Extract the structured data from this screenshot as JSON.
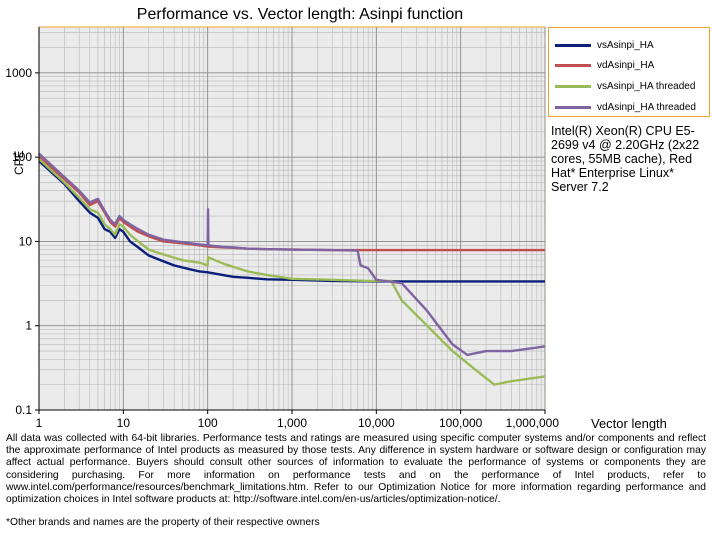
{
  "chart_data": {
    "type": "line",
    "title": "Performance vs. Vector length: Asinpi function",
    "xlabel": "Vector length",
    "ylabel": "CPE",
    "x_scale": "log",
    "y_scale": "log",
    "xlim": [
      1,
      1000000
    ],
    "ylim": [
      0.1,
      3500
    ],
    "x_ticks": [
      1,
      10,
      100,
      1000,
      10000,
      100000,
      1000000
    ],
    "x_tick_labels": [
      "1",
      "10",
      "100",
      "1,000",
      "10,000",
      "100,000",
      "1,000,000"
    ],
    "y_ticks": [
      0.1,
      1,
      10,
      100,
      1000
    ],
    "y_tick_labels": [
      "0.1",
      "1",
      "10",
      "100",
      "1000"
    ],
    "grid": true,
    "legend_position": "right",
    "series": [
      {
        "name": "vsAsinpi_HA",
        "color": "#0a1f7a",
        "points": [
          [
            1,
            90
          ],
          [
            2,
            48
          ],
          [
            3,
            30
          ],
          [
            4,
            22
          ],
          [
            5,
            19
          ],
          [
            6,
            14
          ],
          [
            7,
            13
          ],
          [
            8,
            11
          ],
          [
            9,
            14
          ],
          [
            10,
            13
          ],
          [
            12,
            10
          ],
          [
            15,
            8.5
          ],
          [
            20,
            6.8
          ],
          [
            30,
            5.8
          ],
          [
            40,
            5.2
          ],
          [
            60,
            4.7
          ],
          [
            80,
            4.4
          ],
          [
            100,
            4.3
          ],
          [
            150,
            4.0
          ],
          [
            200,
            3.8
          ],
          [
            300,
            3.7
          ],
          [
            500,
            3.55
          ],
          [
            1000,
            3.5
          ],
          [
            3000,
            3.4
          ],
          [
            10000,
            3.35
          ],
          [
            100000,
            3.35
          ],
          [
            1000000,
            3.35
          ]
        ]
      },
      {
        "name": "vdAsinpi_HA",
        "color": "#c0504d",
        "points": [
          [
            1,
            100
          ],
          [
            2,
            55
          ],
          [
            3,
            38
          ],
          [
            4,
            27
          ],
          [
            5,
            30
          ],
          [
            6,
            22
          ],
          [
            7,
            17
          ],
          [
            8,
            15
          ],
          [
            9,
            19
          ],
          [
            10,
            17
          ],
          [
            12,
            15
          ],
          [
            15,
            13
          ],
          [
            20,
            11.5
          ],
          [
            30,
            10
          ],
          [
            50,
            9.5
          ],
          [
            80,
            9
          ],
          [
            100,
            8.7
          ],
          [
            150,
            8.5
          ],
          [
            200,
            8.4
          ],
          [
            300,
            8.2
          ],
          [
            500,
            8.1
          ],
          [
            1000,
            8
          ],
          [
            3000,
            7.9
          ],
          [
            6000,
            7.9
          ],
          [
            10000,
            7.9
          ],
          [
            100000,
            7.9
          ],
          [
            1000000,
            7.9
          ]
        ]
      },
      {
        "name": "vsAsinpi_HA threaded",
        "color": "#9bbb59",
        "points": [
          [
            1,
            95
          ],
          [
            2,
            50
          ],
          [
            3,
            33
          ],
          [
            4,
            24
          ],
          [
            5,
            22
          ],
          [
            6,
            16
          ],
          [
            7,
            14
          ],
          [
            8,
            12
          ],
          [
            9,
            16
          ],
          [
            10,
            15
          ],
          [
            12,
            12
          ],
          [
            15,
            10
          ],
          [
            20,
            8
          ],
          [
            30,
            7
          ],
          [
            50,
            6
          ],
          [
            80,
            5.6
          ],
          [
            100,
            5.2
          ],
          [
            101,
            6.5
          ],
          [
            150,
            5.5
          ],
          [
            200,
            5
          ],
          [
            300,
            4.4
          ],
          [
            500,
            4
          ],
          [
            1000,
            3.6
          ],
          [
            3000,
            3.5
          ],
          [
            8000,
            3.4
          ],
          [
            15000,
            3.4
          ],
          [
            20000,
            2
          ],
          [
            40000,
            1
          ],
          [
            80000,
            0.5
          ],
          [
            150000,
            0.3
          ],
          [
            250000,
            0.2
          ],
          [
            400000,
            0.22
          ],
          [
            1000000,
            0.25
          ]
        ]
      },
      {
        "name": "vdAsinpi_HA threaded",
        "color": "#8064a2",
        "points": [
          [
            1,
            110
          ],
          [
            2,
            58
          ],
          [
            3,
            40
          ],
          [
            4,
            29
          ],
          [
            5,
            32
          ],
          [
            6,
            23
          ],
          [
            7,
            18
          ],
          [
            8,
            16
          ],
          [
            9,
            20
          ],
          [
            10,
            18
          ],
          [
            12,
            16
          ],
          [
            15,
            14
          ],
          [
            20,
            12
          ],
          [
            30,
            10.5
          ],
          [
            50,
            9.8
          ],
          [
            80,
            9.2
          ],
          [
            100,
            9
          ],
          [
            101,
            24
          ],
          [
            102,
            9
          ],
          [
            150,
            8.6
          ],
          [
            200,
            8.5
          ],
          [
            300,
            8.2
          ],
          [
            500,
            8.1
          ],
          [
            1000,
            8
          ],
          [
            3000,
            7.9
          ],
          [
            6000,
            7.8
          ],
          [
            6500,
            5.2
          ],
          [
            8000,
            4.8
          ],
          [
            10000,
            3.5
          ],
          [
            20000,
            3.2
          ],
          [
            40000,
            1.5
          ],
          [
            80000,
            0.6
          ],
          [
            120000,
            0.45
          ],
          [
            200000,
            0.5
          ],
          [
            400000,
            0.5
          ],
          [
            800000,
            0.55
          ],
          [
            1000000,
            0.57
          ]
        ]
      }
    ]
  },
  "cpu_info": "Intel(R) Xeon(R) CPU E5-2699 v4 @ 2.20GHz (2x22 cores, 55MB cache), Red Hat* Enterprise Linux* Server 7.2",
  "disclaimer": "All data was collected with 64-bit libraries. Performance tests and ratings are measured using specific computer systems and/or components and reflect the approximate performance of Intel products as measured by those tests. Any difference in system hardware or software design or configuration may affect actual performance. Buyers should consult other sources of information to evaluate the performance of systems or components they are considering purchasing. For more information on performance tests and on the performance of Intel products, refer to www.intel.com/performance/resources/benchmark_limitations.htm. Refer to our Optimization Notice for more information regarding performance and optimization choices in Intel software products at: http://software.intel.com/en-us/articles/optimization-notice/.",
  "footnote": "*Other brands and names are the property of their respective owners"
}
